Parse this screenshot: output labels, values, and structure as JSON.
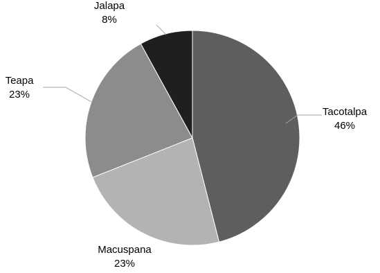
{
  "chart_data": {
    "type": "pie",
    "title": "",
    "slices": [
      {
        "label": "Tacotalpa",
        "value": 46,
        "value_label": "46%",
        "color": "#5e5e5e"
      },
      {
        "label": "Macuspana",
        "value": 23,
        "value_label": "23%",
        "color": "#b3b3b3"
      },
      {
        "label": "Teapa",
        "value": 23,
        "value_label": "23%",
        "color": "#8c8c8c"
      },
      {
        "label": "Jalapa",
        "value": 8,
        "value_label": "8%",
        "color": "#1f1f1f"
      }
    ],
    "start_angle_deg": 0,
    "direction": "clockwise",
    "legend": "none",
    "data_labels": "outside-with-leader-lines"
  }
}
